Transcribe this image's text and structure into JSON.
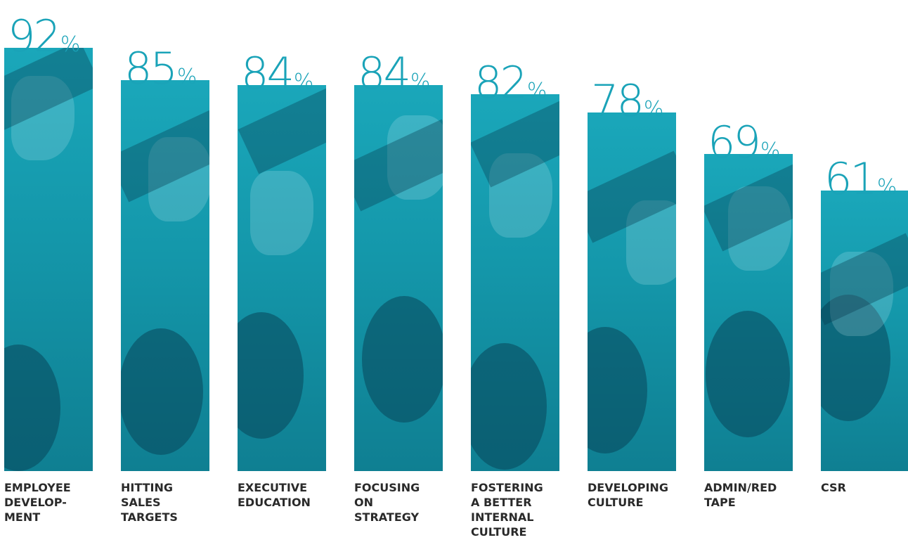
{
  "chart_data": {
    "type": "bar",
    "categories": [
      "EMPLOYEE DEVELOP-MENT",
      "HITTING SALES TARGETS",
      "EXECUTIVE EDUCATION",
      "FOCUSING ON STRATEGY",
      "FOSTERING A BETTER INTERNAL CULTURE",
      "DEVELOPING CULTURE",
      "ADMIN/RED TAPE",
      "CSR"
    ],
    "category_lines": [
      [
        "EMPLOYEE",
        "DEVELOP-",
        "MENT"
      ],
      [
        "HITTING",
        "SALES",
        "TARGETS"
      ],
      [
        "EXECUTIVE",
        "EDUCATION"
      ],
      [
        "FOCUSING",
        "ON",
        "STRATEGY"
      ],
      [
        "FOSTERING",
        "A BETTER",
        "INTERNAL",
        "CULTURE"
      ],
      [
        "DEVELOPING",
        "CULTURE"
      ],
      [
        "ADMIN/RED",
        "TAPE"
      ],
      [
        "CSR"
      ]
    ],
    "values": [
      92,
      85,
      84,
      84,
      82,
      78,
      69,
      61
    ],
    "value_suffix": "%",
    "title": "",
    "xlabel": "",
    "ylabel": "",
    "ylim": [
      0,
      100
    ],
    "grid": false,
    "legend": "none",
    "colors": {
      "bar": "#1497aa",
      "value_text": "#1aa3b8",
      "category_text": "#2a2a2a",
      "background": "#ffffff"
    }
  }
}
